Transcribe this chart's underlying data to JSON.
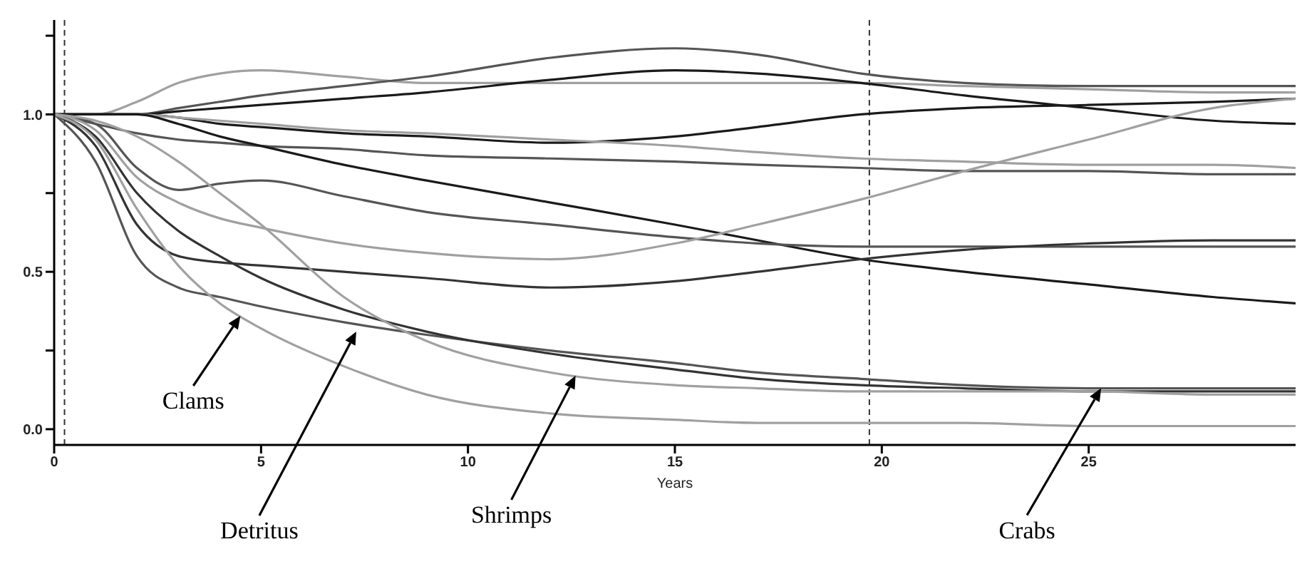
{
  "chart_data": {
    "type": "line",
    "xlabel": "Years",
    "x": [
      0,
      1,
      2,
      3,
      4,
      5,
      7,
      9,
      12,
      15,
      17,
      19.5,
      22,
      25,
      28,
      30
    ],
    "xlim": [
      0,
      30
    ],
    "xticks": [
      0,
      5,
      10,
      15,
      20,
      25
    ],
    "ylim": [
      -0.05,
      1.3
    ],
    "yticks": [
      {
        "value": 0,
        "label": "0.0"
      },
      {
        "value": 0.25,
        "label": null
      },
      {
        "value": 0.5,
        "label": "0.5"
      },
      {
        "value": 0.75,
        "label": null
      },
      {
        "value": 1,
        "label": "1.0"
      },
      {
        "value": 1.25,
        "label": null
      }
    ],
    "grid": false,
    "legend": false,
    "marker": "none",
    "line_style": "solid",
    "ref_lines": [
      {
        "axis": "x",
        "value": 0.25,
        "color": "#333333",
        "line_style": "dashed"
      },
      {
        "axis": "x",
        "value": 19.7,
        "color": "#333333",
        "line_style": "dashed"
      }
    ],
    "series": [
      {
        "color": "#a0a0a0",
        "values": [
          1,
          1,
          1.04,
          1.1,
          1.13,
          1.14,
          1.12,
          1.1,
          1.1,
          1.1,
          1.1,
          1.1,
          1.09,
          1.08,
          1.07,
          1.07
        ]
      },
      {
        "color": "#555555",
        "values": [
          1,
          1,
          1,
          1.02,
          1.04,
          1.06,
          1.09,
          1.12,
          1.18,
          1.21,
          1.19,
          1.13,
          1.1,
          1.09,
          1.09,
          1.09
        ]
      },
      {
        "color": "#1a1a1a",
        "values": [
          1,
          1,
          1,
          1.01,
          1.02,
          1.03,
          1.05,
          1.07,
          1.11,
          1.14,
          1.13,
          1.1,
          1.06,
          1.02,
          0.98,
          0.97
        ]
      },
      {
        "color": "#1a1a1a",
        "values": [
          1,
          1,
          1,
          0.99,
          0.97,
          0.96,
          0.94,
          0.93,
          0.91,
          0.93,
          0.96,
          1,
          1.02,
          1.03,
          1.04,
          1.05
        ]
      },
      {
        "color": "#a0a0a0",
        "values": [
          1,
          1,
          1,
          0.99,
          0.98,
          0.97,
          0.95,
          0.94,
          0.92,
          0.9,
          0.88,
          0.86,
          0.85,
          0.84,
          0.84,
          0.83
        ]
      },
      {
        "color": "#555555",
        "values": [
          1,
          0.97,
          0.94,
          0.92,
          0.91,
          0.9,
          0.89,
          0.87,
          0.86,
          0.85,
          0.84,
          0.83,
          0.82,
          0.82,
          0.81,
          0.81
        ]
      },
      {
        "color": "#1a1a1a",
        "values": [
          1,
          1,
          1,
          0.97,
          0.93,
          0.9,
          0.84,
          0.79,
          0.72,
          0.65,
          0.6,
          0.54,
          0.5,
          0.46,
          0.42,
          0.4
        ]
      },
      {
        "color": "#555555",
        "values": [
          1,
          0.97,
          0.83,
          0.76,
          0.78,
          0.79,
          0.74,
          0.69,
          0.65,
          0.61,
          0.59,
          0.58,
          0.58,
          0.58,
          0.58,
          0.58
        ]
      },
      {
        "color": "#a0a0a0",
        "values": [
          1,
          0.95,
          0.8,
          0.72,
          0.67,
          0.64,
          0.59,
          0.56,
          0.54,
          0.59,
          0.65,
          0.73,
          0.82,
          0.92,
          1.02,
          1.05
        ]
      },
      {
        "color": "#333333",
        "values": [
          1,
          0.9,
          0.65,
          0.55,
          0.53,
          0.52,
          0.5,
          0.48,
          0.45,
          0.47,
          0.5,
          0.54,
          0.57,
          0.59,
          0.6,
          0.6
        ]
      },
      {
        "color": "#555555",
        "values": [
          1,
          0.85,
          0.55,
          0.45,
          0.42,
          0.39,
          0.34,
          0.3,
          0.25,
          0.21,
          0.18,
          0.16,
          0.14,
          0.13,
          0.13,
          0.13
        ]
      },
      {
        "color": "#333333",
        "values": [
          1,
          0.93,
          0.75,
          0.63,
          0.55,
          0.48,
          0.38,
          0.31,
          0.24,
          0.19,
          0.16,
          0.14,
          0.13,
          0.12,
          0.12,
          0.12
        ]
      },
      {
        "color": "#a0a0a0",
        "values": [
          1,
          0.98,
          0.93,
          0.85,
          0.75,
          0.65,
          0.42,
          0.28,
          0.18,
          0.14,
          0.13,
          0.12,
          0.12,
          0.12,
          0.11,
          0.11
        ]
      },
      {
        "color": "#a0a0a0",
        "values": [
          1,
          0.92,
          0.7,
          0.52,
          0.4,
          0.32,
          0.2,
          0.11,
          0.05,
          0.03,
          0.02,
          0.02,
          0.02,
          0.01,
          0.01,
          0.01
        ]
      }
    ],
    "annotations": [
      {
        "text": "Clams",
        "x": 4.5,
        "y": 0.36
      },
      {
        "text": "Detritus",
        "x": 7.3,
        "y": 0.31
      },
      {
        "text": "Shrimps",
        "x": 12.6,
        "y": 0.17
      },
      {
        "text": "Crabs",
        "x": 25.3,
        "y": 0.13
      }
    ]
  }
}
